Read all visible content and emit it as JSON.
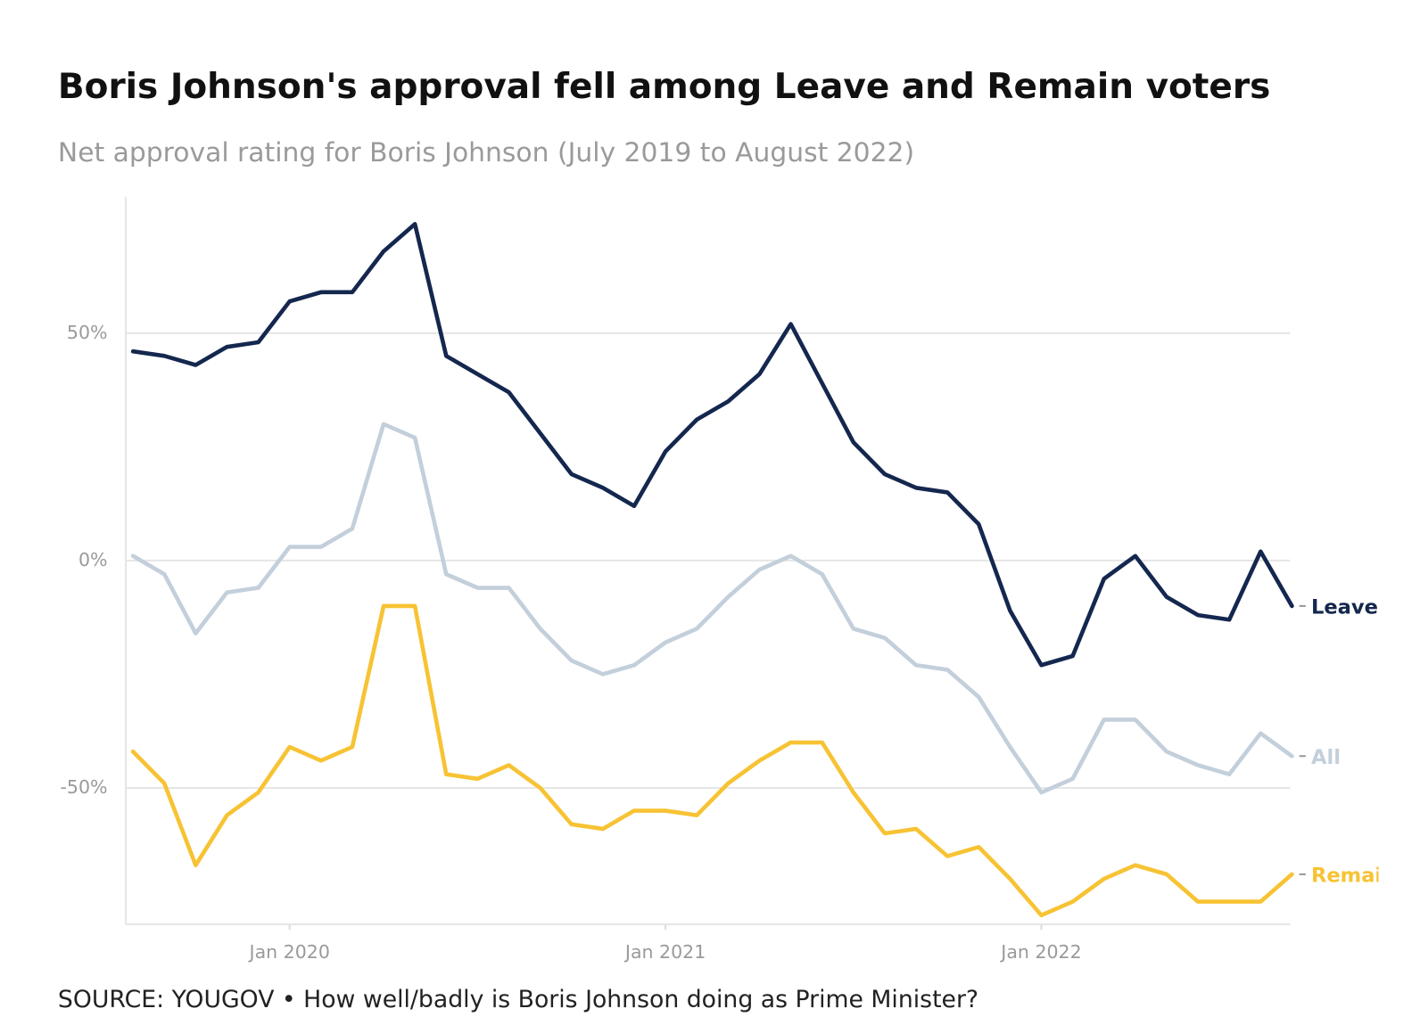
{
  "chart_data": {
    "type": "line",
    "title": "Boris Johnson's approval fell among Leave and Remain voters",
    "subtitle": "Net approval rating for Boris Johnson (July 2019 to August 2022)",
    "source": "SOURCE: YOUGOV • How well/badly is Boris Johnson doing as Prime Minister?",
    "x": [
      "2019-07",
      "2019-08",
      "2019-09",
      "2019-10",
      "2019-11",
      "2019-12",
      "2020-01",
      "2020-02",
      "2020-03",
      "2020-04",
      "2020-05",
      "2020-06",
      "2020-07",
      "2020-08",
      "2020-09",
      "2020-10",
      "2020-11",
      "2020-12",
      "2021-01",
      "2021-02",
      "2021-03",
      "2021-04",
      "2021-05",
      "2021-06",
      "2021-07",
      "2021-08",
      "2021-09",
      "2021-10",
      "2021-11",
      "2021-12",
      "2022-01",
      "2022-02",
      "2022-03",
      "2022-04",
      "2022-05",
      "2022-06",
      "2022-07",
      "2022-08"
    ],
    "xlim": [
      "2019-07",
      "2022-08"
    ],
    "xticks": [
      {
        "value": "2020-01",
        "label": "Jan 2020"
      },
      {
        "value": "2021-01",
        "label": "Jan 2021"
      },
      {
        "value": "2022-01",
        "label": "Jan 2022"
      }
    ],
    "ylim": [
      -80,
      80
    ],
    "yticks": [
      {
        "value": -50,
        "label": "-50%"
      },
      {
        "value": 0,
        "label": "0%"
      },
      {
        "value": 50,
        "label": "50%"
      }
    ],
    "grid": true,
    "series": [
      {
        "name": "Leave",
        "color": "#14274e",
        "values": [
          46,
          45,
          43,
          47,
          48,
          57,
          59,
          59,
          68,
          74,
          45,
          41,
          37,
          28,
          19,
          16,
          12,
          24,
          31,
          35,
          41,
          52,
          39,
          26,
          19,
          16,
          15,
          8,
          -11,
          -23,
          -21,
          -4,
          1,
          -8,
          -12,
          -13,
          2,
          -10
        ]
      },
      {
        "name": "All",
        "color": "#c3cfdb",
        "values": [
          1,
          -3,
          -16,
          -7,
          -6,
          3,
          3,
          7,
          30,
          27,
          -3,
          -6,
          -6,
          -15,
          -22,
          -25,
          -23,
          -18,
          -15,
          -8,
          -2,
          1,
          -3,
          -15,
          -17,
          -23,
          -24,
          -30,
          -41,
          -51,
          -48,
          -35,
          -35,
          -42,
          -45,
          -47,
          -38,
          -43
        ]
      },
      {
        "name": "Remain",
        "color": "#f7c334",
        "values": [
          -42,
          -49,
          -67,
          -56,
          -51,
          -41,
          -44,
          -41,
          -10,
          -10,
          -47,
          -48,
          -45,
          -50,
          -58,
          -59,
          -55,
          -55,
          -56,
          -49,
          -44,
          -40,
          -40,
          -51,
          -60,
          -59,
          -65,
          -63,
          -70,
          -78,
          -75,
          -70,
          -67,
          -69,
          -75,
          -75,
          -75,
          -69
        ]
      }
    ]
  }
}
